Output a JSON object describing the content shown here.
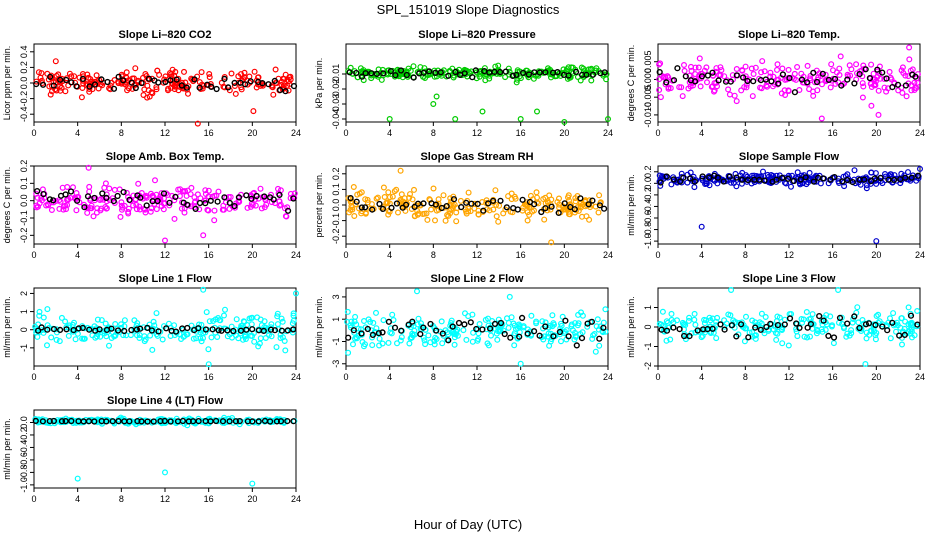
{
  "figure": {
    "title": "SPL_151019  Slope Diagnostics",
    "xlabel": "Hour of Day (UTC)"
  },
  "chart_data": [
    {
      "type": "scatter",
      "title": "Slope Li–820 CO2",
      "ylabel": "Licor ppm per min.",
      "color": "#ff0000",
      "xlim": [
        0,
        24
      ],
      "ylim": [
        -0.5,
        0.5
      ],
      "yticks": [
        {
          "v": -0.4,
          "label": "-0.4"
        },
        {
          "v": -0.2,
          "label": "-0.2"
        },
        {
          "v": 0,
          "label": "0.0"
        },
        {
          "v": 0.2,
          "label": "0.2"
        },
        {
          "v": 0.4,
          "label": "0.4"
        }
      ],
      "xticks": [
        0,
        4,
        8,
        12,
        16,
        20,
        24
      ],
      "spread": 0.14,
      "outliers": [
        [
          15.0,
          -0.52
        ],
        [
          2.0,
          0.28
        ],
        [
          20.1,
          -0.36
        ]
      ]
    },
    {
      "type": "scatter",
      "title": "Slope Li–820 Pressure",
      "ylabel": "kPa per min.",
      "color": "#00cc00",
      "xlim": [
        0,
        24
      ],
      "ylim": [
        -0.042,
        0.01
      ],
      "yticks": [
        {
          "v": -0.04,
          "label": "-0.04"
        },
        {
          "v": -0.03,
          "label": "-0.03"
        },
        {
          "v": -0.02,
          "label": "-0.02"
        },
        {
          "v": -0.01,
          "label": "-0.01"
        }
      ],
      "xticks": [
        0,
        4,
        8,
        12,
        16,
        20,
        24
      ],
      "spread": 0.0035,
      "outliers": [
        [
          4.0,
          -0.04
        ],
        [
          8.0,
          -0.03
        ],
        [
          10.0,
          -0.04
        ],
        [
          12.5,
          -0.035
        ],
        [
          16.0,
          -0.04
        ],
        [
          17.5,
          -0.035
        ],
        [
          20.0,
          -0.042
        ],
        [
          24.0,
          -0.04
        ],
        [
          8.3,
          -0.025
        ]
      ]
    },
    {
      "type": "scatter",
      "title": "Slope Li–820 Temp.",
      "ylabel": "degrees C per min.",
      "color": "#ff00ff",
      "xlim": [
        0,
        24
      ],
      "ylim": [
        -0.012,
        0.01
      ],
      "yticks": [
        {
          "v": -0.01,
          "label": "-0.010"
        },
        {
          "v": -0.005,
          "label": "-0.005"
        },
        {
          "v": 0,
          "label": "0.000"
        },
        {
          "v": 0.005,
          "label": "0.005"
        }
      ],
      "xticks": [
        0,
        4,
        8,
        12,
        16,
        20,
        24
      ],
      "spread": 0.0045,
      "outliers": [
        [
          15.0,
          -0.011
        ],
        [
          23.0,
          0.009
        ],
        [
          20.2,
          -0.01
        ]
      ]
    },
    {
      "type": "scatter",
      "title": "Slope Amb. Box Temp.",
      "ylabel": "degrees C per min.",
      "color": "#ff00ff",
      "xlim": [
        0,
        24
      ],
      "ylim": [
        -0.25,
        0.2
      ],
      "yticks": [
        {
          "v": -0.2,
          "label": "-0.2"
        },
        {
          "v": -0.1,
          "label": "-0.1"
        },
        {
          "v": 0,
          "label": "0.0"
        },
        {
          "v": 0.1,
          "label": "0.1"
        },
        {
          "v": 0.2,
          "label": "0.2"
        }
      ],
      "xticks": [
        0,
        4,
        8,
        12,
        16,
        20,
        24
      ],
      "spread": 0.075,
      "outliers": [
        [
          12.0,
          -0.23
        ],
        [
          15.5,
          -0.2
        ],
        [
          5.0,
          0.19
        ]
      ]
    },
    {
      "type": "scatter",
      "title": "Slope Gas Stream RH",
      "ylabel": "percent per min.",
      "color": "#ffa500",
      "xlim": [
        0,
        24
      ],
      "ylim": [
        -0.25,
        0.25
      ],
      "yticks": [
        {
          "v": -0.2,
          "label": "-0.2"
        },
        {
          "v": -0.1,
          "label": "-0.1"
        },
        {
          "v": 0,
          "label": "0.0"
        },
        {
          "v": 0.1,
          "label": "0.1"
        },
        {
          "v": 0.2,
          "label": "0.2"
        }
      ],
      "xticks": [
        0,
        4,
        8,
        12,
        16,
        20,
        24
      ],
      "spread": 0.08,
      "outliers": [
        [
          18.8,
          -0.24
        ],
        [
          5.0,
          0.22
        ]
      ]
    },
    {
      "type": "scatter",
      "title": "Slope Sample Flow",
      "ylabel": "ml/min per min.",
      "color": "#0000cc",
      "xlim": [
        0,
        24
      ],
      "ylim": [
        -1.05,
        0.3
      ],
      "yticks": [
        {
          "v": -1,
          "label": "-1.0"
        },
        {
          "v": -0.8,
          "label": "-0.8"
        },
        {
          "v": -0.6,
          "label": "-0.6"
        },
        {
          "v": -0.4,
          "label": "-0.4"
        },
        {
          "v": -0.2,
          "label": "-0.2"
        },
        {
          "v": 0,
          "label": "0.0"
        },
        {
          "v": 0.2,
          "label": "0.2"
        }
      ],
      "xticks": [
        0,
        4,
        8,
        12,
        16,
        20,
        24
      ],
      "spread": 0.1,
      "outliers": [
        [
          4.0,
          -0.75
        ],
        [
          20.0,
          -1.0
        ],
        [
          24.0,
          0.25
        ]
      ]
    },
    {
      "type": "scatter",
      "title": "Slope Line 1 Flow",
      "ylabel": "ml/min per min.",
      "color": "#00ffff",
      "xlim": [
        0,
        24
      ],
      "ylim": [
        -2,
        2.3
      ],
      "yticks": [
        {
          "v": -1,
          "label": "-1"
        },
        {
          "v": 0,
          "label": "0"
        },
        {
          "v": 1,
          "label": "1"
        },
        {
          "v": 2,
          "label": "2"
        }
      ],
      "xticks": [
        0,
        4,
        8,
        12,
        16,
        20,
        24
      ],
      "spread": 0.75,
      "outliers": [
        [
          15.5,
          2.2
        ],
        [
          24.0,
          2.0
        ],
        [
          16.0,
          -1.9
        ]
      ]
    },
    {
      "type": "scatter",
      "title": "Slope Line 2 Flow",
      "ylabel": "ml/min per min.",
      "color": "#00ffff",
      "xlim": [
        0,
        24
      ],
      "ylim": [
        -3.2,
        3.8
      ],
      "yticks": [
        {
          "v": -3,
          "label": "-3"
        },
        {
          "v": -1,
          "label": "-1"
        },
        {
          "v": 1,
          "label": "1"
        },
        {
          "v": 3,
          "label": "3"
        }
      ],
      "xticks": [
        0,
        4,
        8,
        12,
        16,
        20,
        24
      ],
      "spread": 1.25,
      "outliers": [
        [
          6.5,
          3.5
        ],
        [
          16.0,
          -3.0
        ],
        [
          15.0,
          3.0
        ]
      ]
    },
    {
      "type": "scatter",
      "title": "Slope Line 3 Flow",
      "ylabel": "ml/min per min.",
      "color": "#00ffff",
      "xlim": [
        0,
        24
      ],
      "ylim": [
        -2,
        2
      ],
      "yticks": [
        {
          "v": -2,
          "label": "-2"
        },
        {
          "v": -1,
          "label": "-1"
        },
        {
          "v": 0,
          "label": "0"
        },
        {
          "v": 1,
          "label": "1"
        }
      ],
      "xticks": [
        0,
        4,
        8,
        12,
        16,
        20,
        24
      ],
      "spread": 0.7,
      "outliers": [
        [
          6.7,
          1.9
        ],
        [
          16.5,
          1.9
        ],
        [
          19.0,
          -1.9
        ]
      ]
    },
    {
      "type": "scatter",
      "title": "Slope Line 4 (LT) Flow",
      "ylabel": "ml/min per min.",
      "color": "#00ffff",
      "xlim": [
        0,
        24
      ],
      "ylim": [
        -1.05,
        0.2
      ],
      "yticks": [
        {
          "v": -1,
          "label": "-1.0"
        },
        {
          "v": -0.8,
          "label": "-0.8"
        },
        {
          "v": -0.6,
          "label": "-0.6"
        },
        {
          "v": -0.4,
          "label": "-0.4"
        },
        {
          "v": -0.2,
          "label": "-0.2"
        },
        {
          "v": 0,
          "label": "0.0"
        }
      ],
      "xticks": [
        0,
        4,
        8,
        12,
        16,
        20,
        24
      ],
      "spread": 0.04,
      "outliers": [
        [
          4.0,
          -0.9
        ],
        [
          12.0,
          -0.8
        ],
        [
          20.0,
          -0.98
        ]
      ]
    }
  ]
}
